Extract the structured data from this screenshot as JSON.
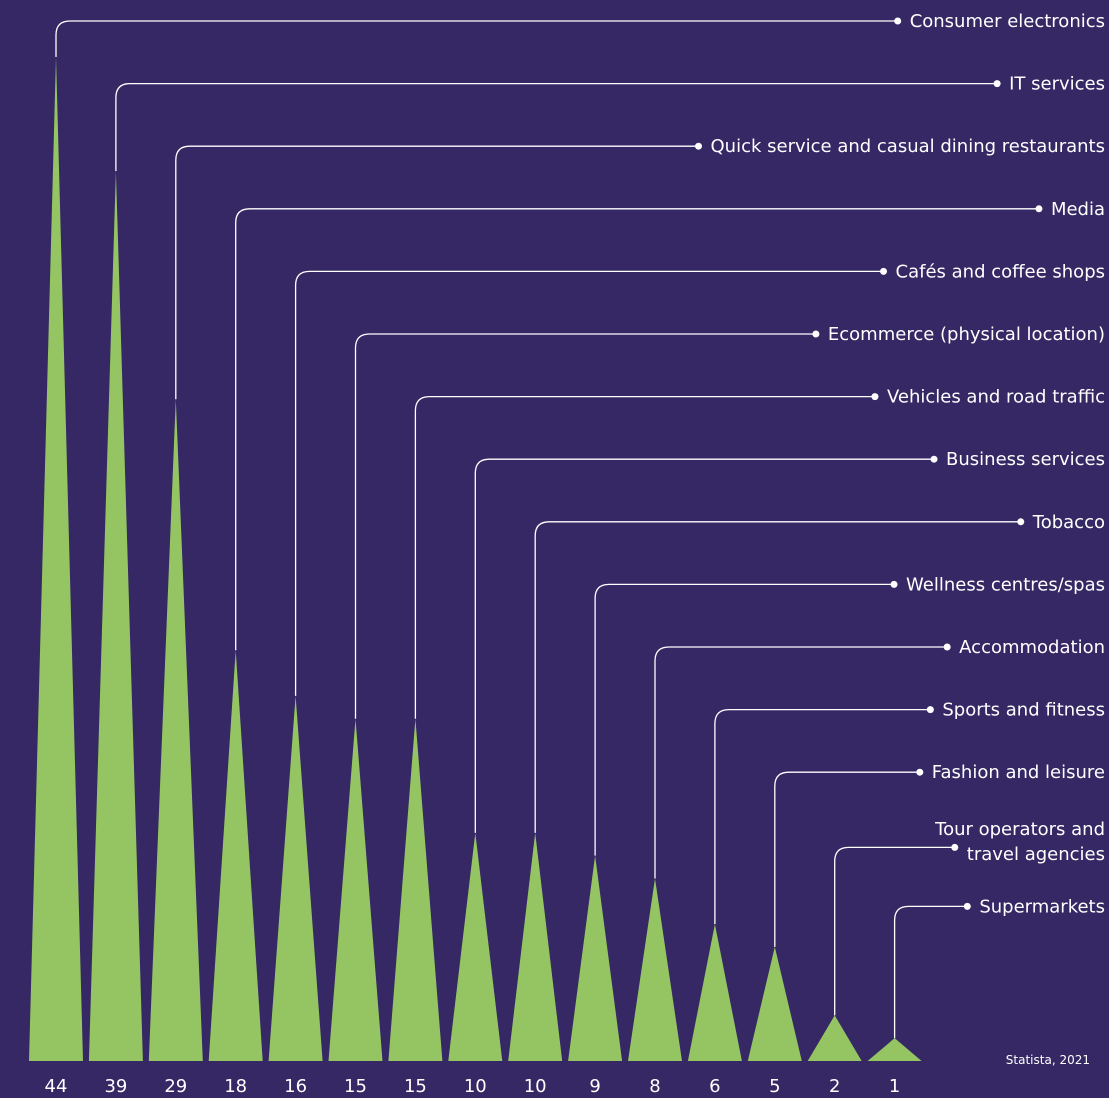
{
  "chart_data": {
    "type": "bar",
    "categories": [
      "Consumer electronics",
      "IT services",
      "Quick service and casual dining restaurants",
      "Media",
      "Cafés and coffee shops",
      "Ecommerce (physical location)",
      "Vehicles and road traffic",
      "Business services",
      "Tobacco",
      "Wellness centres/spas",
      "Accommodation",
      "Sports and fitness",
      "Fashion and leisure",
      "Tour operators and travel agencies",
      "Supermarkets"
    ],
    "values": [
      44,
      39,
      29,
      18,
      16,
      15,
      15,
      10,
      10,
      9,
      8,
      6,
      5,
      2,
      1
    ],
    "source": "Statista, 2021",
    "title": "",
    "xlabel": "",
    "ylabel": "",
    "ylim": [
      0,
      44
    ],
    "grid": false,
    "legend": "none"
  },
  "colors": {
    "background": "#352864",
    "bar": "#95c562",
    "text": "#ffffff",
    "connector": "#ffffff"
  }
}
